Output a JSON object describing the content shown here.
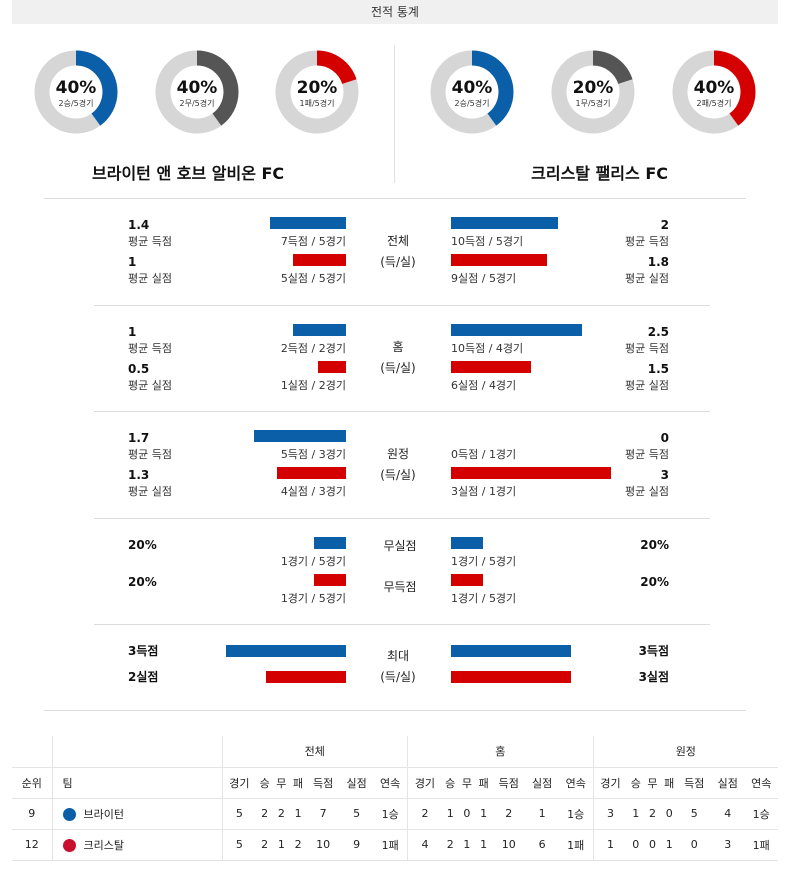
{
  "header": {
    "title": "전적 통계"
  },
  "donuts": [
    {
      "pct_text": "40%",
      "sub": "2승/5경기",
      "pct": 40,
      "color": "#0b5ea8"
    },
    {
      "pct_text": "40%",
      "sub": "2무/5경기",
      "pct": 40,
      "color": "#555555"
    },
    {
      "pct_text": "20%",
      "sub": "1패/5경기",
      "pct": 20,
      "color": "#d40000"
    },
    {
      "pct_text": "40%",
      "sub": "2승/5경기",
      "pct": 40,
      "color": "#0b5ea8"
    },
    {
      "pct_text": "20%",
      "sub": "1무/5경기",
      "pct": 20,
      "color": "#555555"
    },
    {
      "pct_text": "40%",
      "sub": "2패/5경기",
      "pct": 40,
      "color": "#d40000"
    }
  ],
  "teams": {
    "home": "브라이턴 앤 호브 알비온 FC",
    "away": "크리스탈 팰리스 FC"
  },
  "sections": [
    {
      "center": [
        "전체",
        "(득/실)"
      ],
      "rows": [
        {
          "l_val": "1.4",
          "l_lbl": "평균 득점",
          "l_bar": "7득점 / 5경기",
          "l_num": 7,
          "r_val": "2",
          "r_lbl": "평균 득점",
          "r_bar": "10득점 / 5경기",
          "r_num": 10
        },
        {
          "l_val": "1",
          "l_lbl": "평균 실점",
          "l_bar": "5실점 / 5경기",
          "l_num": 5,
          "r_val": "1.8",
          "r_lbl": "평균 실점",
          "r_bar": "9실점 / 5경기",
          "r_num": 9
        }
      ]
    },
    {
      "center": [
        "홈",
        "(득/실)"
      ],
      "rows": [
        {
          "l_val": "1",
          "l_lbl": "평균 득점",
          "l_bar": "2득점 / 2경기",
          "l_num": 2,
          "r_val": "2.5",
          "r_lbl": "평균 득점",
          "r_bar": "10득점 / 4경기",
          "r_num": 10
        },
        {
          "l_val": "0.5",
          "l_lbl": "평균 실점",
          "l_bar": "1실점 / 2경기",
          "l_num": 1,
          "r_val": "1.5",
          "r_lbl": "평균 실점",
          "r_bar": "6실점 / 4경기",
          "r_num": 6
        }
      ]
    },
    {
      "center": [
        "원정",
        "(득/실)"
      ],
      "rows": [
        {
          "l_val": "1.7",
          "l_lbl": "평균 득점",
          "l_bar": "5득점 / 3경기",
          "l_num": 5,
          "r_val": "0",
          "r_lbl": "평균 득점",
          "r_bar": "0득점 / 1경기",
          "r_num": 0
        },
        {
          "l_val": "1.3",
          "l_lbl": "평균 실점",
          "l_bar": "4실점 / 3경기",
          "l_num": 4,
          "r_val": "3",
          "r_lbl": "평균 실점",
          "r_bar": "3실점 / 1경기",
          "r_num": 3
        }
      ]
    },
    {
      "rows": [
        {
          "center": "무실점",
          "l_val": "20%",
          "l_bar": "1경기 / 5경기",
          "l_num": 20,
          "r_val": "20%",
          "r_bar": "1경기 / 5경기",
          "r_num": 20
        },
        {
          "center": "무득점",
          "l_val": "20%",
          "l_bar": "1경기 / 5경기",
          "l_num": 20,
          "r_val": "20%",
          "r_bar": "1경기 / 5경기",
          "r_num": 20
        }
      ]
    },
    {
      "center": [
        "최대",
        "(득/실)"
      ],
      "rows": [
        {
          "l_val": "3득점",
          "r_val": "3득점",
          "l_num": 3,
          "r_num": 3
        },
        {
          "l_val": "2실점",
          "r_val": "3실점",
          "l_num": 2,
          "r_num": 3
        }
      ]
    }
  ],
  "standings": {
    "groups": [
      "전체",
      "홈",
      "원정"
    ],
    "cols": [
      "순위",
      "팀",
      "경기",
      "승",
      "무",
      "패",
      "득점",
      "실점",
      "연속",
      "경기",
      "승",
      "무",
      "패",
      "득점",
      "실점",
      "연속",
      "경기",
      "승",
      "무",
      "패",
      "득점",
      "실점",
      "연속"
    ],
    "rows": [
      {
        "rank": "9",
        "team": "브라이턴",
        "crest_color": "#0b5ea8",
        "cells": [
          "5",
          "2",
          "2",
          "1",
          "7",
          "5",
          "1승",
          "2",
          "1",
          "0",
          "1",
          "2",
          "1",
          "1승",
          "3",
          "1",
          "2",
          "0",
          "5",
          "4",
          "1승"
        ]
      },
      {
        "rank": "12",
        "team": "크리스탈",
        "crest_color": "#c8102e",
        "cells": [
          "5",
          "2",
          "1",
          "2",
          "10",
          "9",
          "1패",
          "4",
          "2",
          "1",
          "1",
          "10",
          "6",
          "1패",
          "1",
          "0",
          "0",
          "1",
          "0",
          "3",
          "1패"
        ]
      }
    ]
  }
}
